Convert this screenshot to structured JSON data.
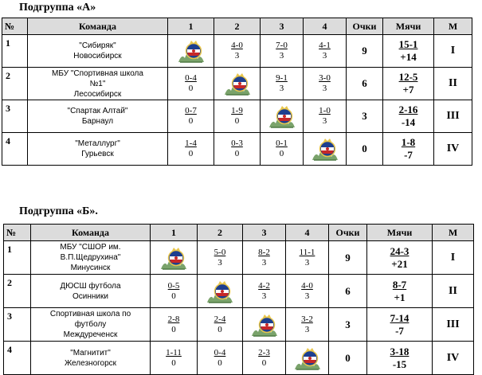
{
  "groupA": {
    "title": "Подгруппа  «А»",
    "headers": [
      "№",
      "Команда",
      "1",
      "2",
      "3",
      "4",
      "Очки",
      "Мячи",
      "М"
    ],
    "rows": [
      {
        "num": "1",
        "team": [
          "\"Сибиряк\"",
          "Новосибирск"
        ],
        "cells": [
          {
            "emblem": true
          },
          {
            "score": "4-0",
            "pts": "3"
          },
          {
            "score": "7-0",
            "pts": "3"
          },
          {
            "score": "4-1",
            "pts": "3"
          }
        ],
        "points": "9",
        "goals": "15-1",
        "diff": "+14",
        "place": "I"
      },
      {
        "num": "2",
        "team": [
          "МБУ \"Спортивная школа",
          "№1\"",
          "Лесосибирск"
        ],
        "cells": [
          {
            "score": "0-4",
            "pts": "0"
          },
          {
            "emblem": true
          },
          {
            "score": "9-1",
            "pts": "3"
          },
          {
            "score": "3-0",
            "pts": "3"
          }
        ],
        "points": "6",
        "goals": "12-5",
        "diff": "+7",
        "place": "II"
      },
      {
        "num": "3",
        "team": [
          "\"Спартак Алтай\"",
          "Барнаул"
        ],
        "cells": [
          {
            "score": "0-7",
            "pts": "0"
          },
          {
            "score": "1-9",
            "pts": "0"
          },
          {
            "emblem": true
          },
          {
            "score": "1-0",
            "pts": "3"
          }
        ],
        "points": "3",
        "goals": "2-16",
        "diff": "-14",
        "place": "III"
      },
      {
        "num": "4",
        "team": [
          "\"Металлург\"",
          "Гурьевск"
        ],
        "cells": [
          {
            "score": "1-4",
            "pts": "0"
          },
          {
            "score": "0-3",
            "pts": "0"
          },
          {
            "score": "0-1",
            "pts": "0"
          },
          {
            "emblem": true
          }
        ],
        "points": "0",
        "goals": "1-8",
        "diff": "-7",
        "place": "IV"
      }
    ]
  },
  "groupB": {
    "title": "Подгруппа  «Б».",
    "headers": [
      "№",
      "Команда",
      "1",
      "2",
      "3",
      "4",
      "Очки",
      "Мячи",
      "М"
    ],
    "rows": [
      {
        "num": "1",
        "team": [
          "МБУ \"СШОР им.",
          "В.П.Щедрухина\"",
          "Минусинск"
        ],
        "cells": [
          {
            "emblem": true
          },
          {
            "score": "5-0",
            "pts": "3"
          },
          {
            "score": "8-2",
            "pts": "3"
          },
          {
            "score": "11-1",
            "pts": "3"
          }
        ],
        "points": "9",
        "goals": "24-3",
        "diff": "+21",
        "place": "I"
      },
      {
        "num": "2",
        "team": [
          "ДЮСШ футбола",
          "Осинники"
        ],
        "cells": [
          {
            "score": "0-5",
            "pts": "0"
          },
          {
            "emblem": true
          },
          {
            "score": "4-2",
            "pts": "3"
          },
          {
            "score": "4-0",
            "pts": "3"
          }
        ],
        "points": "6",
        "goals": "8-7",
        "diff": "+1",
        "place": "II"
      },
      {
        "num": "3",
        "team": [
          "Спортивная школа по",
          "футболу",
          "Междуреченск"
        ],
        "cells": [
          {
            "score": "2-8",
            "pts": "0"
          },
          {
            "score": "2-4",
            "pts": "0"
          },
          {
            "emblem": true
          },
          {
            "score": "3-2",
            "pts": "3"
          }
        ],
        "points": "3",
        "goals": "7-14",
        "diff": "-7",
        "place": "III"
      },
      {
        "num": "4",
        "team": [
          "\"Магнитит\"",
          "Железногорск"
        ],
        "cells": [
          {
            "score": "1-11",
            "pts": "0"
          },
          {
            "score": "0-4",
            "pts": "0"
          },
          {
            "score": "2-3",
            "pts": "0"
          },
          {
            "emblem": true
          }
        ],
        "points": "0",
        "goals": "3-18",
        "diff": "-15",
        "place": "IV"
      }
    ]
  }
}
